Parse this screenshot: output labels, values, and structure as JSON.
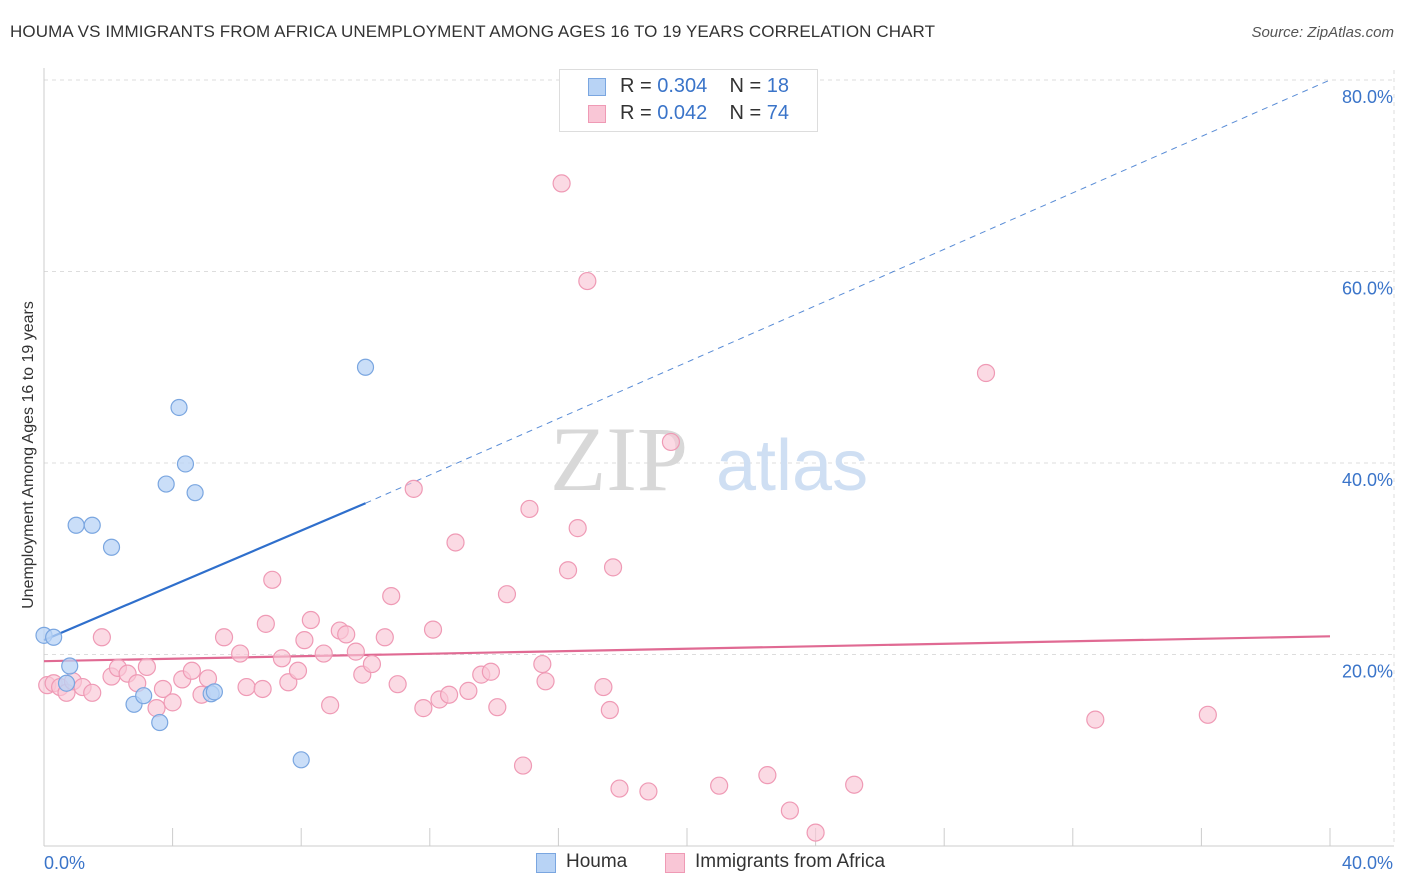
{
  "title": "HOUMA VS IMMIGRANTS FROM AFRICA UNEMPLOYMENT AMONG AGES 16 TO 19 YEARS CORRELATION CHART",
  "source": "Source: ZipAtlas.com",
  "watermark": {
    "zip": "ZIP",
    "atlas": "atlas"
  },
  "legend": {
    "houma": {
      "r_label": "R =",
      "r_value": "0.304",
      "n_label": "N =",
      "n_value": "18"
    },
    "africa": {
      "r_label": "R =",
      "r_value": "0.042",
      "n_label": "N =",
      "n_value": "74"
    }
  },
  "bottom_legend": {
    "houma": "Houma",
    "africa": "Immigrants from Africa"
  },
  "colors": {
    "houma_fill": "#b8d3f5",
    "houma_stroke": "#7aa6e0",
    "houma_line": "#2f6fcc",
    "africa_fill": "#f9c6d6",
    "africa_stroke": "#ef9ab5",
    "africa_line": "#e06a93",
    "grid": "#dddddd",
    "tick_label": "#3a74c9"
  },
  "chart_data": {
    "type": "scatter",
    "title": "HOUMA VS IMMIGRANTS FROM AFRICA UNEMPLOYMENT AMONG AGES 16 TO 19 YEARS CORRELATION CHART",
    "xlabel": "",
    "ylabel": "Unemployment Among Ages 16 to 19 years",
    "xlim": [
      0,
      40
    ],
    "ylim": [
      0,
      80
    ],
    "x_tick_labels": [
      "0.0%",
      "40.0%"
    ],
    "y_ticks": [
      20,
      40,
      60,
      80
    ],
    "y_tick_labels": [
      "20.0%",
      "40.0%",
      "60.0%",
      "80.0%"
    ],
    "grid": true,
    "series": [
      {
        "name": "Houma",
        "points": [
          [
            0.0,
            22.0
          ],
          [
            0.3,
            21.8
          ],
          [
            0.7,
            17.0
          ],
          [
            0.8,
            18.8
          ],
          [
            1.0,
            33.5
          ],
          [
            1.5,
            33.5
          ],
          [
            2.1,
            31.2
          ],
          [
            2.8,
            14.8
          ],
          [
            3.1,
            15.7
          ],
          [
            3.6,
            12.9
          ],
          [
            3.8,
            37.8
          ],
          [
            4.2,
            45.8
          ],
          [
            4.4,
            39.9
          ],
          [
            4.7,
            36.9
          ],
          [
            5.2,
            15.9
          ],
          [
            5.3,
            16.1
          ],
          [
            8.0,
            9.0
          ],
          [
            10.0,
            50.0
          ]
        ],
        "trend": {
          "x": [
            0.0,
            10.0
          ],
          "y": [
            21.5,
            35.8
          ],
          "dashed_extension": {
            "x": [
              10.0,
              40.0
            ],
            "y": [
              35.8,
              80.0
            ]
          }
        }
      },
      {
        "name": "Immigrants from Africa",
        "points": [
          [
            0.1,
            16.8
          ],
          [
            0.3,
            17.0
          ],
          [
            0.5,
            16.6
          ],
          [
            0.7,
            16.0
          ],
          [
            0.9,
            17.2
          ],
          [
            1.2,
            16.6
          ],
          [
            1.5,
            16.0
          ],
          [
            1.8,
            21.8
          ],
          [
            2.1,
            17.7
          ],
          [
            2.3,
            18.6
          ],
          [
            2.6,
            18.0
          ],
          [
            2.9,
            17.0
          ],
          [
            3.2,
            18.7
          ],
          [
            3.5,
            14.4
          ],
          [
            3.7,
            16.4
          ],
          [
            4.0,
            15.0
          ],
          [
            4.3,
            17.4
          ],
          [
            4.6,
            18.3
          ],
          [
            4.9,
            15.8
          ],
          [
            5.1,
            17.5
          ],
          [
            5.6,
            21.8
          ],
          [
            6.1,
            20.1
          ],
          [
            6.3,
            16.6
          ],
          [
            6.8,
            16.4
          ],
          [
            6.9,
            23.2
          ],
          [
            7.1,
            27.8
          ],
          [
            7.4,
            19.6
          ],
          [
            7.6,
            17.1
          ],
          [
            7.9,
            18.3
          ],
          [
            8.1,
            21.5
          ],
          [
            8.3,
            23.6
          ],
          [
            8.7,
            20.1
          ],
          [
            8.9,
            14.7
          ],
          [
            9.2,
            22.5
          ],
          [
            9.4,
            22.1
          ],
          [
            9.7,
            20.3
          ],
          [
            9.9,
            17.9
          ],
          [
            10.2,
            19.0
          ],
          [
            10.6,
            21.8
          ],
          [
            10.8,
            26.1
          ],
          [
            11.0,
            16.9
          ],
          [
            11.5,
            37.3
          ],
          [
            11.8,
            14.4
          ],
          [
            12.1,
            22.6
          ],
          [
            12.3,
            15.3
          ],
          [
            12.6,
            15.8
          ],
          [
            12.8,
            31.7
          ],
          [
            13.2,
            16.2
          ],
          [
            13.6,
            17.9
          ],
          [
            13.9,
            18.2
          ],
          [
            14.1,
            14.5
          ],
          [
            14.4,
            26.3
          ],
          [
            14.9,
            8.4
          ],
          [
            15.1,
            35.2
          ],
          [
            15.5,
            19.0
          ],
          [
            15.6,
            17.2
          ],
          [
            16.1,
            69.2
          ],
          [
            16.3,
            28.8
          ],
          [
            16.6,
            33.2
          ],
          [
            16.9,
            59.0
          ],
          [
            17.4,
            16.6
          ],
          [
            17.6,
            14.2
          ],
          [
            17.7,
            29.1
          ],
          [
            17.9,
            6.0
          ],
          [
            18.8,
            5.7
          ],
          [
            19.5,
            42.2
          ],
          [
            21.0,
            6.3
          ],
          [
            22.5,
            7.4
          ],
          [
            23.2,
            3.7
          ],
          [
            24.0,
            1.4
          ],
          [
            25.2,
            6.4
          ],
          [
            29.3,
            49.4
          ],
          [
            32.7,
            13.2
          ],
          [
            36.2,
            13.7
          ]
        ],
        "trend": {
          "x": [
            0.0,
            40.0
          ],
          "y": [
            19.3,
            21.9
          ]
        }
      }
    ]
  }
}
